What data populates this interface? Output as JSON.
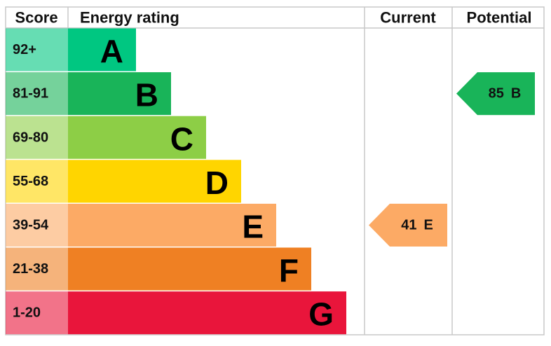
{
  "header": {
    "score": "Score",
    "rating": "Energy rating",
    "current": "Current",
    "potential": "Potential"
  },
  "bands": [
    {
      "score": "92+",
      "letter": "A",
      "color": "#00c781"
    },
    {
      "score": "81-91",
      "letter": "B",
      "color": "#19b459"
    },
    {
      "score": "69-80",
      "letter": "C",
      "color": "#8dce46"
    },
    {
      "score": "55-68",
      "letter": "D",
      "color": "#ffd500"
    },
    {
      "score": "39-54",
      "letter": "E",
      "color": "#fcaa65"
    },
    {
      "score": "21-38",
      "letter": "F",
      "color": "#ef8023"
    },
    {
      "score": "1-20",
      "letter": "G",
      "color": "#e9153b"
    }
  ],
  "current": {
    "value": 41,
    "letter": "E"
  },
  "potential": {
    "value": 85,
    "letter": "B"
  }
}
